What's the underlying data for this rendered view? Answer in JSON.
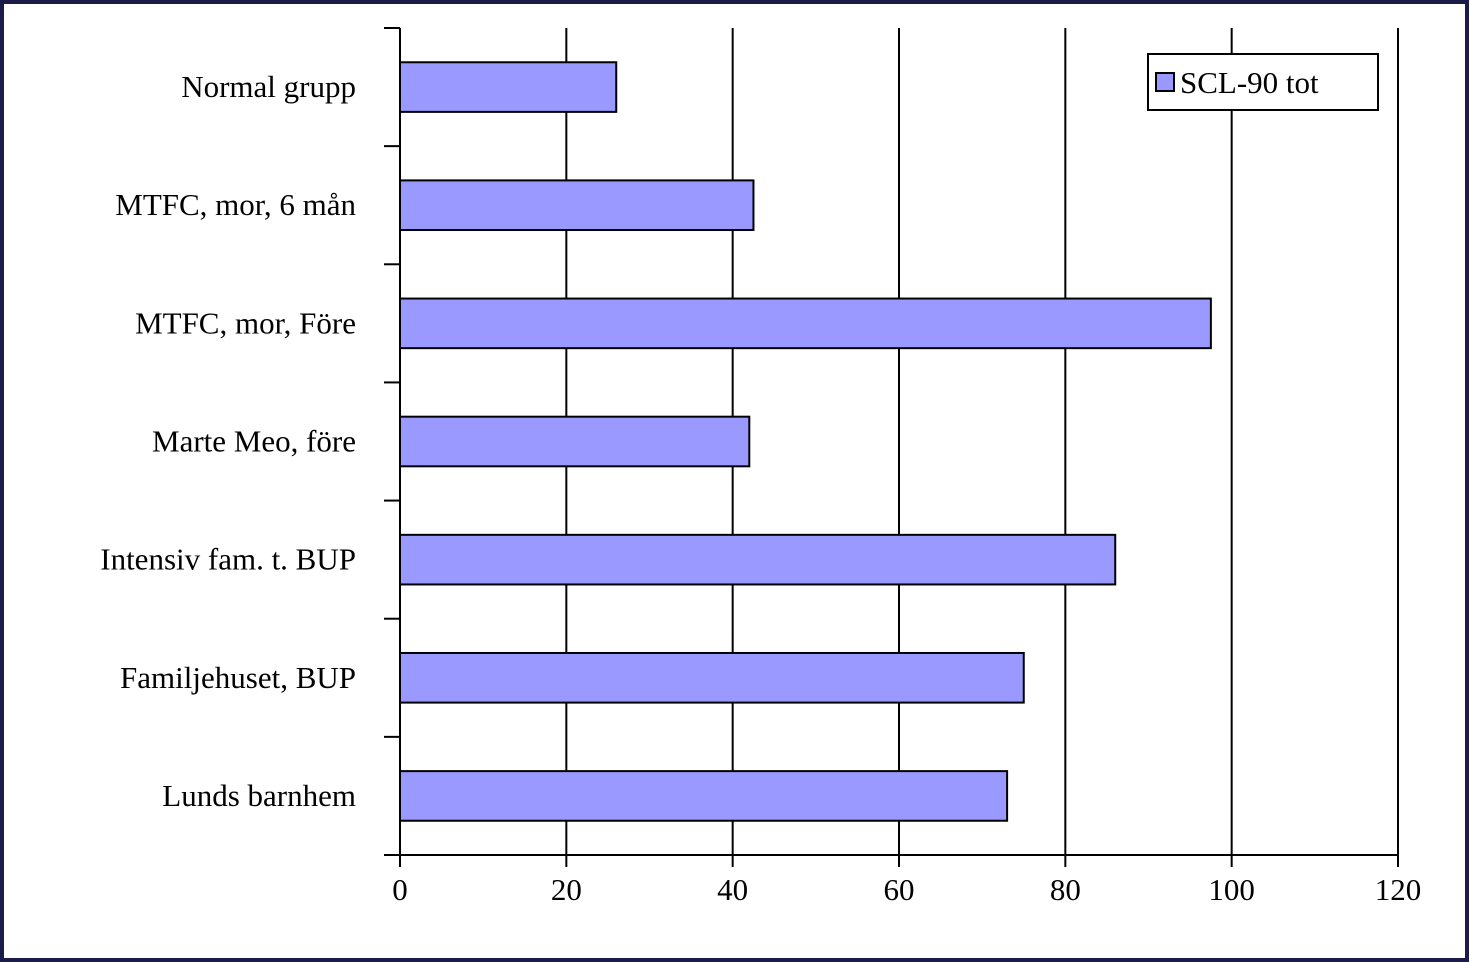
{
  "chart_data": {
    "type": "bar",
    "orientation": "horizontal",
    "categories": [
      "Normal grupp",
      "MTFC, mor, 6 mån",
      "MTFC, mor, Före",
      "Marte Meo, före",
      "Intensiv fam. t.  BUP",
      "Familjehuset, BUP",
      "Lunds barnhem"
    ],
    "series": [
      {
        "name": "SCL-90 tot",
        "values": [
          26,
          42.5,
          97.5,
          42,
          86,
          75,
          73
        ]
      }
    ],
    "xlim": [
      0,
      120
    ],
    "xticks": [
      0,
      20,
      40,
      60,
      80,
      100,
      120
    ],
    "grid": "vertical",
    "legend": "top-right",
    "bar_color": "#9999ff",
    "edge_color": "#000000",
    "border_color": "#1c1c4a"
  }
}
